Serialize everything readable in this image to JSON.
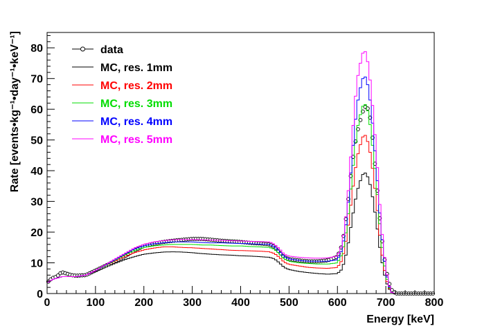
{
  "chart_data": {
    "type": "line",
    "title": "",
    "xlabel": "Energy [keV]",
    "ylabel": "Rate [events•kg⁻¹•day⁻¹•keV⁻¹]",
    "xlim": [
      0,
      800
    ],
    "ylim": [
      0,
      85
    ],
    "x_ticks": [
      "0",
      "100",
      "200",
      "300",
      "400",
      "500",
      "600",
      "700",
      "800"
    ],
    "y_ticks": [
      "0",
      "10",
      "20",
      "30",
      "40",
      "50",
      "60",
      "70",
      "80"
    ],
    "grid": false,
    "legend_position": "top-left",
    "x": [
      0,
      10,
      20,
      30,
      40,
      50,
      60,
      80,
      100,
      120,
      140,
      160,
      180,
      200,
      220,
      240,
      260,
      280,
      300,
      320,
      340,
      360,
      380,
      400,
      420,
      440,
      460,
      470,
      480,
      490,
      500,
      520,
      540,
      560,
      580,
      600,
      610,
      620,
      630,
      640,
      650,
      655,
      660,
      665,
      670,
      680,
      690,
      700,
      710,
      720,
      740,
      760,
      780,
      800
    ],
    "series": [
      {
        "name": "data",
        "style": "markers",
        "color": "#000000",
        "values": [
          3.5,
          5,
          5.5,
          7,
          6.5,
          6,
          5.8,
          6,
          7.5,
          9,
          10.5,
          12,
          14,
          15.5,
          16.2,
          16.8,
          17.2,
          17.5,
          17.8,
          17.8,
          17.5,
          17.2,
          17,
          16.8,
          16.5,
          16.3,
          16,
          15.2,
          13.5,
          11.8,
          11.2,
          10.8,
          10.5,
          10.5,
          10.8,
          12,
          16,
          27,
          42,
          52,
          58,
          60.5,
          61,
          59.5,
          55,
          38,
          20,
          8,
          1.5,
          0,
          0,
          0,
          0,
          0
        ]
      },
      {
        "name": "MC, res. 1mm",
        "style": "step",
        "color": "#000000",
        "values": [
          3.5,
          4.5,
          5,
          5.5,
          5.5,
          5.5,
          5.5,
          6,
          7.2,
          8.5,
          9.8,
          11,
          12,
          12.8,
          13.2,
          13.5,
          13.6,
          13.5,
          13.3,
          13,
          12.8,
          12.6,
          12.5,
          12.3,
          12.2,
          12,
          11.8,
          11.3,
          10,
          8.5,
          7.8,
          7.2,
          6.8,
          6.5,
          6.3,
          6.5,
          8,
          14,
          24,
          33,
          38,
          39.5,
          39,
          37,
          34,
          24,
          12,
          4,
          0.5,
          0,
          0,
          0,
          0,
          0
        ]
      },
      {
        "name": "MC, res. 2mm",
        "style": "step",
        "color": "#ff0000",
        "values": [
          3.5,
          4.5,
          5,
          5.5,
          5.5,
          5.5,
          5.5,
          6,
          7.5,
          9,
          10.5,
          12,
          13.3,
          14.2,
          14.8,
          15.2,
          15.2,
          15,
          14.9,
          14.7,
          14.5,
          14.3,
          14.1,
          14,
          13.9,
          13.8,
          13.6,
          13,
          11.8,
          10.2,
          9.5,
          9,
          8.5,
          8.3,
          8.2,
          8.5,
          11,
          19,
          32,
          44,
          50,
          52,
          51,
          48,
          44,
          31,
          15,
          5,
          0.5,
          0,
          0,
          0,
          0,
          0
        ]
      },
      {
        "name": "MC, res. 3mm",
        "style": "step",
        "color": "#00dd00",
        "values": [
          3.5,
          4.5,
          5,
          5.5,
          5.5,
          5.5,
          5.5,
          6,
          7.5,
          9,
          10.8,
          12.5,
          14,
          15,
          15.5,
          15.8,
          16,
          16,
          16,
          15.8,
          15.8,
          15.6,
          15.5,
          15.5,
          15.3,
          15.2,
          15,
          14.4,
          13,
          11.3,
          10.5,
          10,
          9.8,
          9.6,
          9.6,
          10,
          13,
          22,
          38,
          53,
          60,
          62,
          61,
          58,
          52,
          37,
          18,
          6,
          0.5,
          0,
          0,
          0,
          0,
          0
        ]
      },
      {
        "name": "MC, res. 4mm",
        "style": "step",
        "color": "#0000ff",
        "values": [
          3.5,
          4.5,
          5,
          5.5,
          5.5,
          5.5,
          5.5,
          6,
          7.5,
          9.2,
          11,
          12.8,
          14.5,
          15.5,
          16.2,
          16.5,
          16.8,
          16.8,
          16.8,
          16.6,
          16.5,
          16.5,
          16.4,
          16.3,
          16.2,
          16.1,
          16,
          15.2,
          13.8,
          12,
          11.3,
          10.8,
          10.5,
          10.5,
          10.5,
          11,
          14.5,
          25,
          44,
          61,
          69,
          71,
          70,
          66,
          60,
          42,
          21,
          7,
          0.5,
          0,
          0,
          0,
          0,
          0
        ]
      },
      {
        "name": "MC, res. 5mm",
        "style": "step",
        "color": "#ff00ff",
        "values": [
          3.5,
          4.5,
          5,
          5.5,
          5.5,
          5.5,
          5.5,
          6,
          7.5,
          9.3,
          11.2,
          13,
          14.8,
          16,
          16.8,
          17.2,
          17.5,
          17.6,
          17.6,
          17.5,
          17.4,
          17.3,
          17.2,
          17.1,
          17,
          16.9,
          16.8,
          16,
          14.6,
          12.8,
          12.2,
          11.8,
          11.6,
          11.5,
          11.6,
          12.2,
          16,
          28,
          50,
          69,
          77,
          79.5,
          78,
          73,
          66,
          47,
          23,
          8,
          0.5,
          0,
          0,
          0,
          0,
          0
        ]
      }
    ]
  }
}
